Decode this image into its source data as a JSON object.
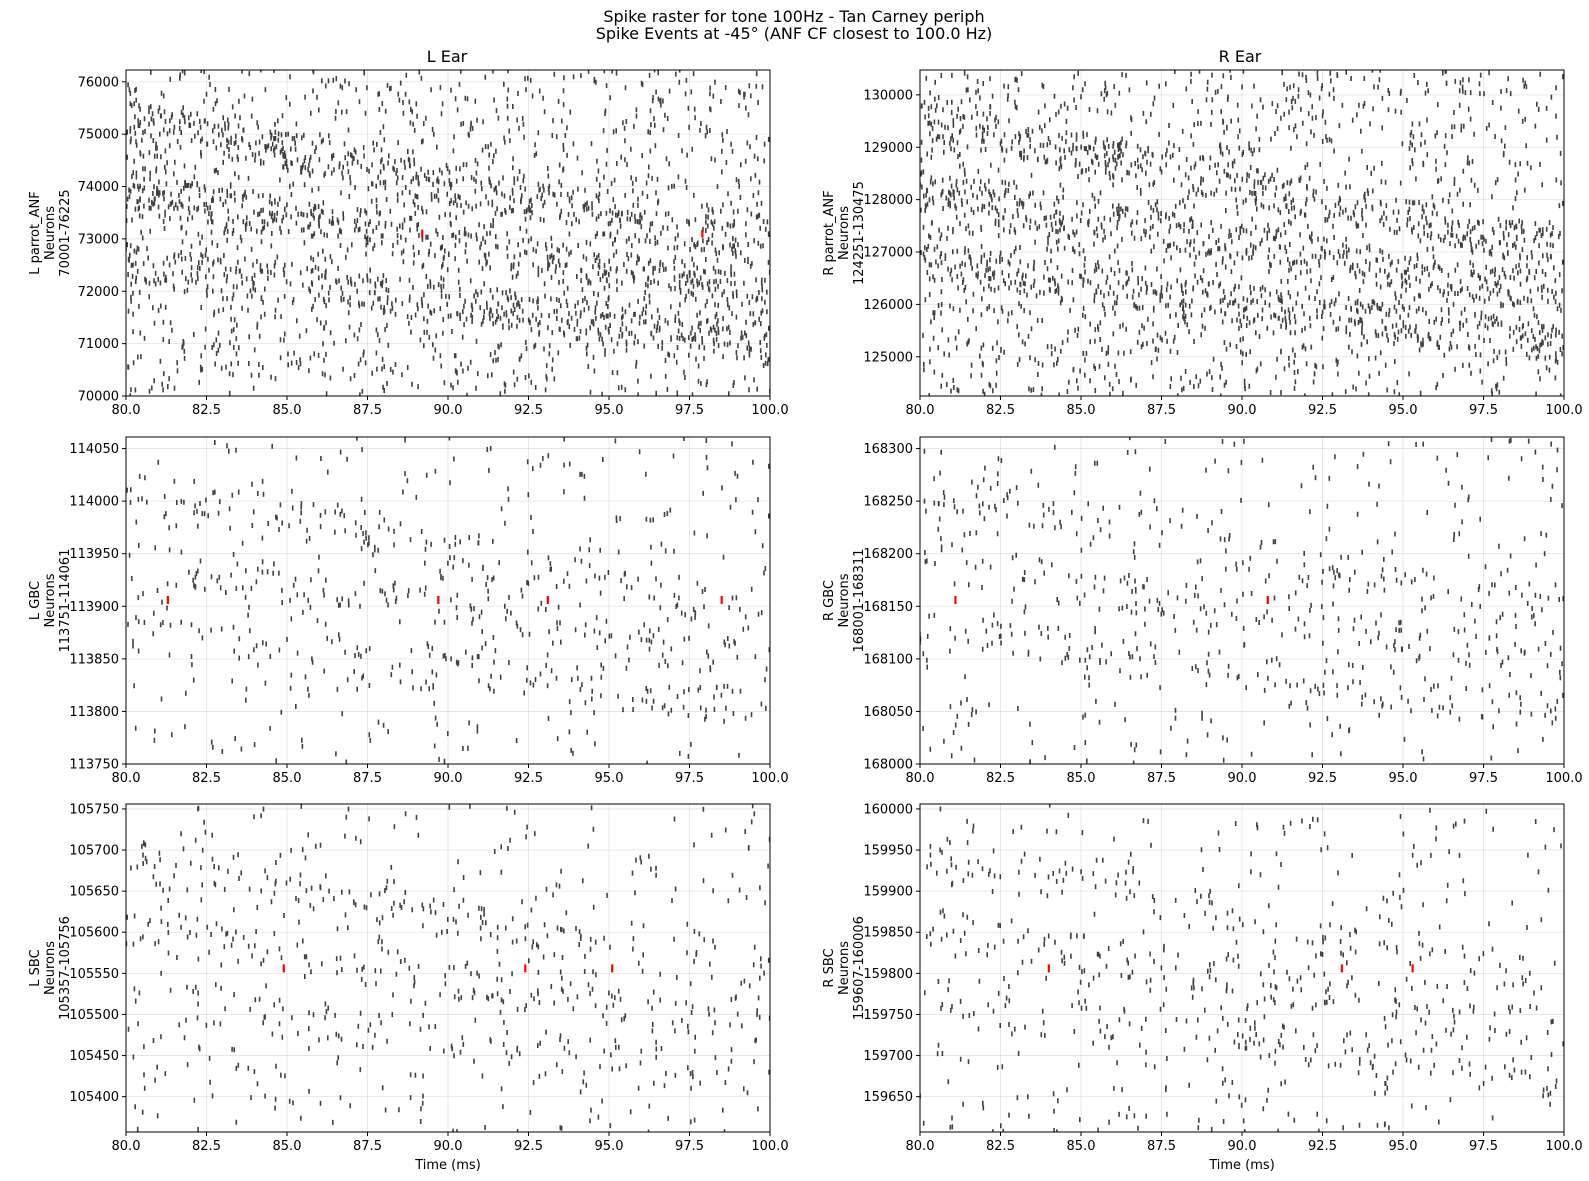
{
  "figure": {
    "title_line1": "Spike raster for tone 100Hz - Tan Carney periph",
    "title_line2": "Spike Events at -45° (ANF CF closest to 100.0 Hz)",
    "column_titles": [
      "L Ear",
      "R Ear"
    ]
  },
  "colors": {
    "spike": "#000000",
    "highlight": "#ff0000",
    "grid": "#b0b0b0"
  },
  "chart_data": [
    {
      "type": "scatter",
      "marker": "vertical-tick",
      "title": "L Ear",
      "ylabel_lines": [
        "L parrot_ANF",
        "Neurons",
        "70001-76225"
      ],
      "xlabel": "",
      "xlim": [
        80,
        100
      ],
      "ylim": [
        70000,
        76225
      ],
      "xticks": [
        80,
        82.5,
        85,
        87.5,
        90,
        92.5,
        95,
        97.5,
        100
      ],
      "xtick_labels": [
        "80.0",
        "82.5",
        "85.0",
        "87.5",
        "90.0",
        "92.5",
        "95.0",
        "97.5",
        "100.0"
      ],
      "yticks": [
        70000,
        71000,
        72000,
        73000,
        74000,
        75000,
        76000
      ],
      "ytick_labels": [
        "70000",
        "71000",
        "72000",
        "73000",
        "74000",
        "75000",
        "76000"
      ],
      "grid": true,
      "highlight_spikes": [
        {
          "x": 89.2,
          "y": 73100
        },
        {
          "x": 97.9,
          "y": 73100
        }
      ],
      "density": "dense"
    },
    {
      "type": "scatter",
      "marker": "vertical-tick",
      "title": "R Ear",
      "ylabel_lines": [
        "R parrot_ANF",
        "Neurons",
        "124251-130475"
      ],
      "xlabel": "",
      "xlim": [
        80,
        100
      ],
      "ylim": [
        124251,
        130475
      ],
      "xticks": [
        80,
        82.5,
        85,
        87.5,
        90,
        92.5,
        95,
        97.5,
        100
      ],
      "xtick_labels": [
        "80.0",
        "82.5",
        "85.0",
        "87.5",
        "90.0",
        "92.5",
        "95.0",
        "97.5",
        "100.0"
      ],
      "yticks": [
        125000,
        126000,
        127000,
        128000,
        129000,
        130000
      ],
      "ytick_labels": [
        "125000",
        "126000",
        "127000",
        "128000",
        "129000",
        "130000"
      ],
      "grid": true,
      "highlight_spikes": [],
      "density": "dense"
    },
    {
      "type": "scatter",
      "marker": "vertical-tick",
      "title": "",
      "ylabel_lines": [
        "L GBC",
        "Neurons",
        "113751-114061"
      ],
      "xlabel": "",
      "xlim": [
        80,
        100
      ],
      "ylim": [
        113750,
        114061
      ],
      "xticks": [
        80,
        82.5,
        85,
        87.5,
        90,
        92.5,
        95,
        97.5,
        100
      ],
      "xtick_labels": [
        "80.0",
        "82.5",
        "85.0",
        "87.5",
        "90.0",
        "92.5",
        "95.0",
        "97.5",
        "100.0"
      ],
      "yticks": [
        113750,
        113800,
        113850,
        113900,
        113950,
        114000,
        114050
      ],
      "ytick_labels": [
        "113750",
        "113800",
        "113850",
        "113900",
        "113950",
        "114000",
        "114050"
      ],
      "grid": true,
      "highlight_spikes": [
        {
          "x": 81.3,
          "y": 113906
        },
        {
          "x": 89.7,
          "y": 113906
        },
        {
          "x": 93.1,
          "y": 113906
        },
        {
          "x": 98.5,
          "y": 113906
        }
      ],
      "density": "sparse"
    },
    {
      "type": "scatter",
      "marker": "vertical-tick",
      "title": "",
      "ylabel_lines": [
        "R GBC",
        "Neurons",
        "168001-168311"
      ],
      "xlabel": "",
      "xlim": [
        80,
        100
      ],
      "ylim": [
        168000,
        168311
      ],
      "xticks": [
        80,
        82.5,
        85,
        87.5,
        90,
        92.5,
        95,
        97.5,
        100
      ],
      "xtick_labels": [
        "80.0",
        "82.5",
        "85.0",
        "87.5",
        "90.0",
        "92.5",
        "95.0",
        "97.5",
        "100.0"
      ],
      "yticks": [
        168000,
        168050,
        168100,
        168150,
        168200,
        168250,
        168300
      ],
      "ytick_labels": [
        "168000",
        "168050",
        "168100",
        "168150",
        "168200",
        "168250",
        "168300"
      ],
      "grid": true,
      "highlight_spikes": [
        {
          "x": 81.1,
          "y": 168156
        },
        {
          "x": 90.8,
          "y": 168156
        }
      ],
      "density": "sparse"
    },
    {
      "type": "scatter",
      "marker": "vertical-tick",
      "title": "",
      "ylabel_lines": [
        "L SBC",
        "Neurons",
        "105357-105756"
      ],
      "xlabel": "Time (ms)",
      "xlim": [
        80,
        100
      ],
      "ylim": [
        105357,
        105756
      ],
      "xticks": [
        80,
        82.5,
        85,
        87.5,
        90,
        92.5,
        95,
        97.5,
        100
      ],
      "xtick_labels": [
        "80.0",
        "82.5",
        "85.0",
        "87.5",
        "90.0",
        "92.5",
        "95.0",
        "97.5",
        "100.0"
      ],
      "yticks": [
        105400,
        105450,
        105500,
        105550,
        105600,
        105650,
        105700,
        105750
      ],
      "ytick_labels": [
        "105400",
        "105450",
        "105500",
        "105550",
        "105600",
        "105650",
        "105700",
        "105750"
      ],
      "grid": true,
      "highlight_spikes": [
        {
          "x": 84.9,
          "y": 105556
        },
        {
          "x": 92.4,
          "y": 105556
        },
        {
          "x": 95.1,
          "y": 105556
        }
      ],
      "density": "sparse"
    },
    {
      "type": "scatter",
      "marker": "vertical-tick",
      "title": "",
      "ylabel_lines": [
        "R SBC",
        "Neurons",
        "159607-160006"
      ],
      "xlabel": "Time (ms)",
      "xlim": [
        80,
        100
      ],
      "ylim": [
        159607,
        160006
      ],
      "xticks": [
        80,
        82.5,
        85,
        87.5,
        90,
        92.5,
        95,
        97.5,
        100
      ],
      "xtick_labels": [
        "80.0",
        "82.5",
        "85.0",
        "87.5",
        "90.0",
        "92.5",
        "95.0",
        "97.5",
        "100.0"
      ],
      "yticks": [
        159650,
        159700,
        159750,
        159800,
        159850,
        159900,
        159950,
        160000
      ],
      "ytick_labels": [
        "159650",
        "159700",
        "159750",
        "159800",
        "159850",
        "159900",
        "159950",
        "160000"
      ],
      "grid": true,
      "highlight_spikes": [
        {
          "x": 84.0,
          "y": 159806
        },
        {
          "x": 93.1,
          "y": 159806
        },
        {
          "x": 95.3,
          "y": 159806
        }
      ],
      "density": "sparse"
    }
  ]
}
